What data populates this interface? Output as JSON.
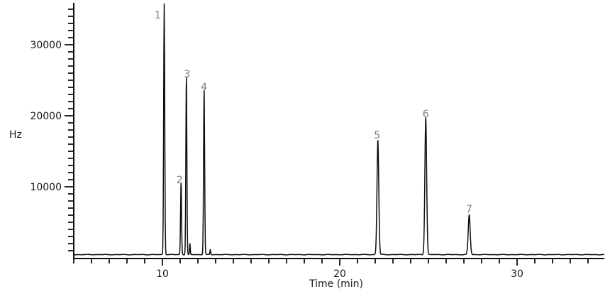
{
  "chart_data": {
    "type": "line",
    "kind": "chromatogram",
    "title": "",
    "x_axis": {
      "title": "Time (min)",
      "min": 5,
      "max": 35,
      "minor_tick_step": 1,
      "last_minor_tick": 34,
      "major_tick_step": 10,
      "major_ticks": [
        10,
        20,
        30
      ]
    },
    "y_axis": {
      "unit_label": "Hz",
      "min": 0,
      "max": 35000,
      "minor_tick_step": 1000,
      "major_tick_step": 10000,
      "major_ticks": [
        10000,
        20000,
        30000
      ]
    },
    "baseline_hz": 450,
    "peaks": [
      {
        "label": "1",
        "time_min": 10.1,
        "height_hz": 35300,
        "sigma_min": 0.03,
        "label_dx": -9,
        "label_dy": 16
      },
      {
        "label": "2",
        "time_min": 11.05,
        "height_hz": 10000,
        "sigma_min": 0.028,
        "label_dx": -2,
        "label_dy": -5
      },
      {
        "label": "3",
        "time_min": 11.35,
        "height_hz": 24900,
        "sigma_min": 0.028,
        "label_dx": 1,
        "label_dy": -5
      },
      {
        "label": "4",
        "time_min": 12.35,
        "height_hz": 23100,
        "sigma_min": 0.03,
        "label_dx": 0,
        "label_dy": -5
      },
      {
        "label": "5",
        "time_min": 22.15,
        "height_hz": 16100,
        "sigma_min": 0.05,
        "label_dx": -1,
        "label_dy": -7
      },
      {
        "label": "6",
        "time_min": 24.85,
        "height_hz": 19300,
        "sigma_min": 0.05,
        "label_dx": 0,
        "label_dy": -5
      },
      {
        "label": "7",
        "time_min": 27.3,
        "height_hz": 5600,
        "sigma_min": 0.055,
        "label_dx": 0,
        "label_dy": -8
      }
    ],
    "unlabeled_blips": [
      {
        "time_min": 11.55,
        "height_hz": 1500,
        "sigma_min": 0.02
      },
      {
        "time_min": 12.7,
        "height_hz": 700,
        "sigma_min": 0.02
      }
    ],
    "colors": {
      "trace": "#0d0d0d",
      "axis": "#111111",
      "peak_label": "#7d7d7d",
      "text": "#1a1a1a",
      "background": "#ffffff"
    }
  }
}
